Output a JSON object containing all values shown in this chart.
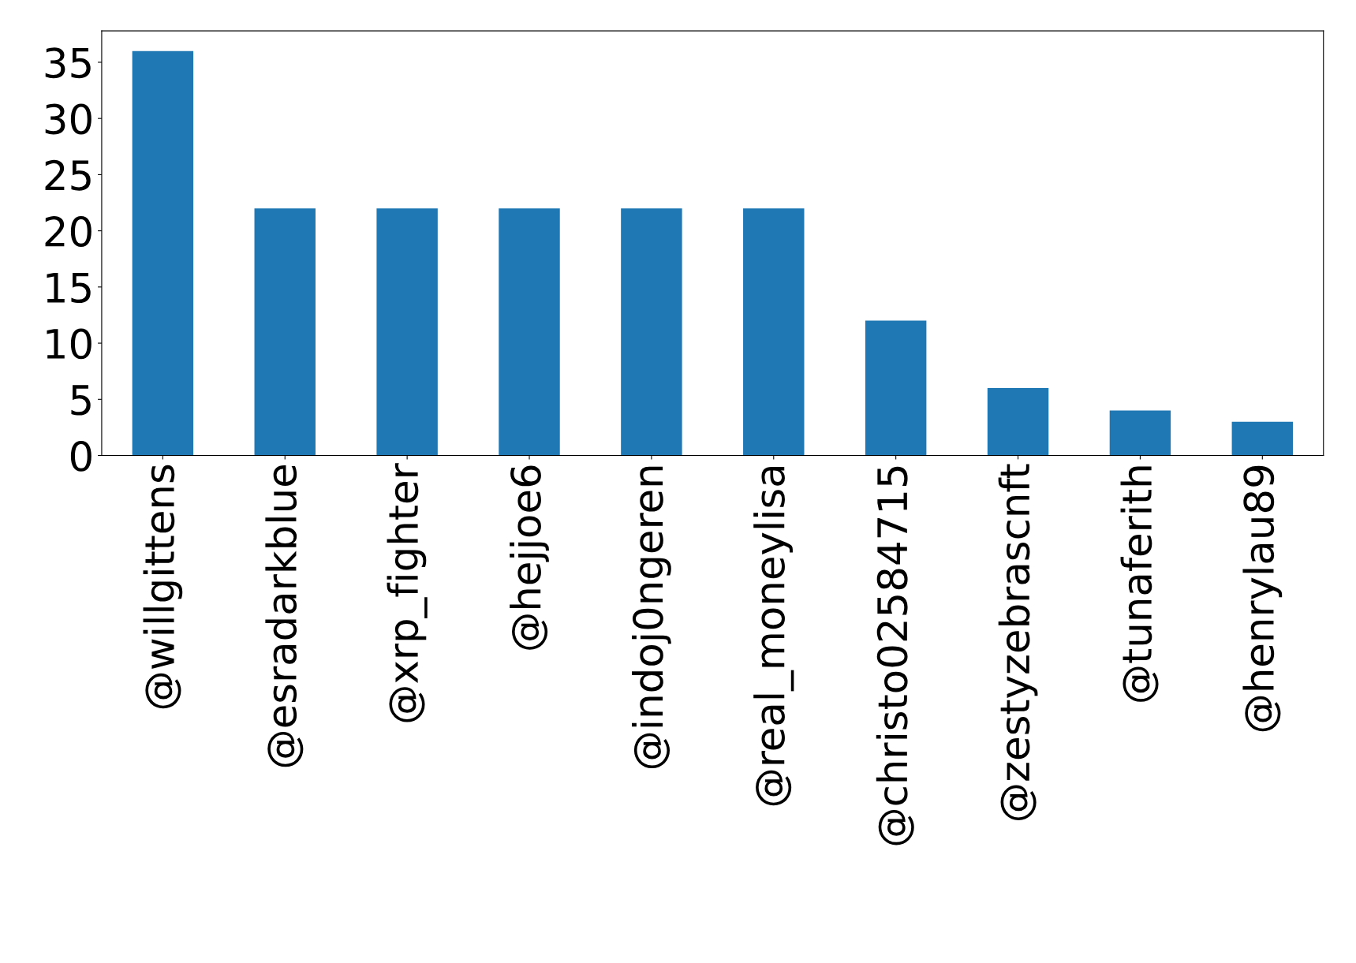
{
  "chart_data": {
    "type": "bar",
    "categories": [
      "@willgittens",
      "@esradarkblue",
      "@xrp_fighter",
      "@hejjoe6",
      "@indoj0ngeren",
      "@real_moneylisa",
      "@christo02584715",
      "@zestyzebrascnft",
      "@tunaferith",
      "@henrylau89"
    ],
    "values": [
      36,
      22,
      22,
      22,
      22,
      22,
      12,
      6,
      4,
      3
    ],
    "color": "#1f77b4",
    "ylim": [
      0,
      37.8
    ],
    "yticks": [
      0,
      5,
      10,
      15,
      20,
      25,
      30,
      35
    ],
    "grid": false,
    "legend": false
  }
}
